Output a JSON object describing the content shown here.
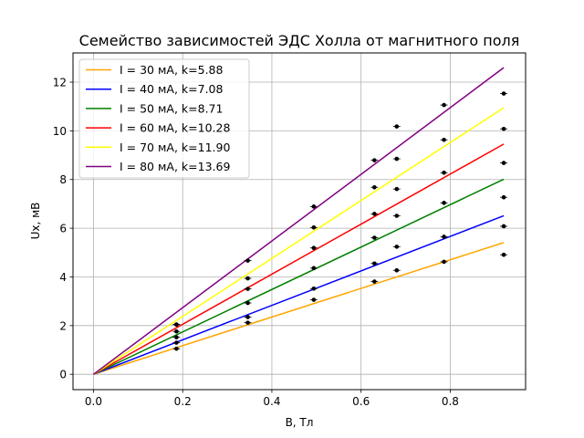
{
  "chart_data": {
    "type": "line",
    "title": "Семейство зависимостей ЭДС Холла от магнитного поля",
    "xlabel": "B, Тл",
    "ylabel": "Ux, мВ",
    "xlim": [
      -0.046,
      0.969
    ],
    "ylim": [
      -0.63,
      13.2
    ],
    "xticks": [
      0.0,
      0.2,
      0.4,
      0.6,
      0.8
    ],
    "xtick_labels": [
      "0.0",
      "0.2",
      "0.4",
      "0.6",
      "0.8"
    ],
    "yticks": [
      0,
      2,
      4,
      6,
      8,
      10,
      12
    ],
    "ytick_labels": [
      "0",
      "2",
      "4",
      "6",
      "8",
      "10",
      "12"
    ],
    "grid": true,
    "legend_position": "top-left",
    "line_x_range": [
      0.0,
      0.92
    ],
    "measurement_x": [
      0.186,
      0.346,
      0.494,
      0.63,
      0.68,
      0.786,
      0.92
    ],
    "series": [
      {
        "name": "I = 30 мА, k=5.88",
        "color": "#ffa500",
        "slope": 5.88,
        "points": [
          1.05,
          2.12,
          3.06,
          3.81,
          4.27,
          4.62,
          4.91
        ]
      },
      {
        "name": "I = 40 мА, k=7.08",
        "color": "#0000ff",
        "slope": 7.08,
        "points": [
          1.3,
          2.35,
          3.52,
          4.55,
          5.24,
          5.65,
          6.08
        ]
      },
      {
        "name": "I = 50 мА, k=8.71",
        "color": "#008000",
        "slope": 8.71,
        "points": [
          1.52,
          2.93,
          4.36,
          5.61,
          6.51,
          7.04,
          7.27
        ]
      },
      {
        "name": "I = 60 мА, k=10.28",
        "color": "#ff0000",
        "slope": 10.28,
        "points": [
          1.76,
          3.51,
          5.19,
          6.59,
          7.61,
          8.28,
          8.68
        ]
      },
      {
        "name": "I = 70 мА, k=11.90",
        "color": "#ffff00",
        "slope": 11.9,
        "points": [
          2.04,
          3.94,
          6.03,
          7.68,
          8.85,
          9.63,
          10.08
        ]
      },
      {
        "name": "I = 80 мА, k=13.69",
        "color": "#800080",
        "slope": 13.69,
        "points": [
          2.05,
          4.67,
          6.89,
          8.79,
          10.18,
          11.06,
          11.53
        ]
      }
    ]
  }
}
